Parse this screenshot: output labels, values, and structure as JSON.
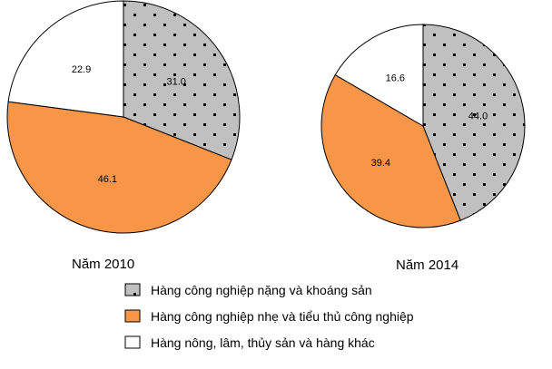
{
  "chart_data": [
    {
      "type": "pie",
      "caption": "Năm 2010",
      "start_angle_deg": 0,
      "direction": "clockwise",
      "slices": [
        {
          "legend_index": 0,
          "value": 31.0,
          "label": "31.0"
        },
        {
          "legend_index": 1,
          "value": 46.1,
          "label": "46.1"
        },
        {
          "legend_index": 2,
          "value": 22.9,
          "label": "22.9"
        }
      ]
    },
    {
      "type": "pie",
      "caption": "Năm 2014",
      "start_angle_deg": 0,
      "direction": "clockwise",
      "slices": [
        {
          "legend_index": 0,
          "value": 44.0,
          "label": "44.0"
        },
        {
          "legend_index": 1,
          "value": 39.4,
          "label": "39.4"
        },
        {
          "legend_index": 2,
          "value": 16.6,
          "label": "16.6"
        }
      ]
    }
  ],
  "legend": [
    {
      "label": "Hàng công nghiệp nặng và khoáng sản",
      "fill": "#c0c0c0",
      "pattern": "dots"
    },
    {
      "label": "Hàng công nghiệp nhẹ và tiểu thủ công nghiệp",
      "fill": "#f79646",
      "pattern": "none"
    },
    {
      "label": "Hàng nông, lâm, thủy sản và hàng khác",
      "fill": "#ffffff",
      "pattern": "none"
    }
  ],
  "legend_placement": "bottom"
}
